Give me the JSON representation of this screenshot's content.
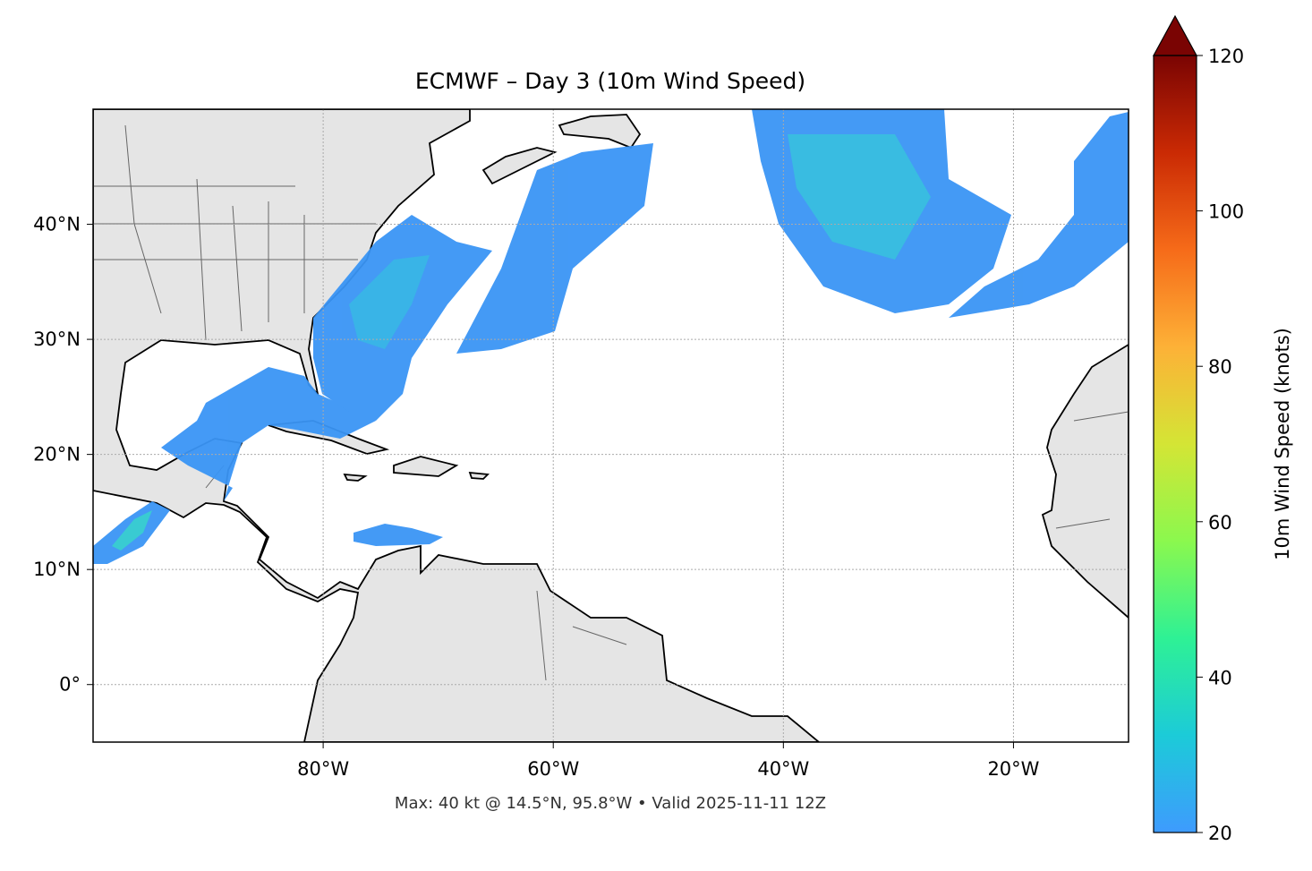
{
  "chart_data": {
    "type": "map",
    "title": "ECMWF – Day 3 (10m Wind Speed)",
    "footnote": "Max: 40 kt @ 14.5°N, 95.8°W • Valid 2025-11-11 12Z",
    "xlim": [
      -100,
      -10
    ],
    "ylim": [
      -5,
      50
    ],
    "xticks": [
      {
        "value": -80,
        "label": "80°W"
      },
      {
        "value": -60,
        "label": "60°W"
      },
      {
        "value": -40,
        "label": "40°W"
      },
      {
        "value": -20,
        "label": "20°W"
      }
    ],
    "yticks": [
      {
        "value": 0,
        "label": "0°"
      },
      {
        "value": 10,
        "label": "10°N"
      },
      {
        "value": 20,
        "label": "20°N"
      },
      {
        "value": 30,
        "label": "30°N"
      },
      {
        "value": 40,
        "label": "40°N"
      }
    ],
    "grid": true,
    "colorbar": {
      "label": "10m Wind Speed (knots)",
      "lim": [
        20,
        120
      ],
      "ticks": [
        20,
        40,
        60,
        80,
        100,
        120
      ],
      "extend": "max",
      "colors": [
        "#3e9bfe",
        "#1ccbd8",
        "#2ef195",
        "#8bf84e",
        "#d4e535",
        "#fdb137",
        "#f66b19",
        "#ca2a04",
        "#7a0403"
      ]
    }
  }
}
